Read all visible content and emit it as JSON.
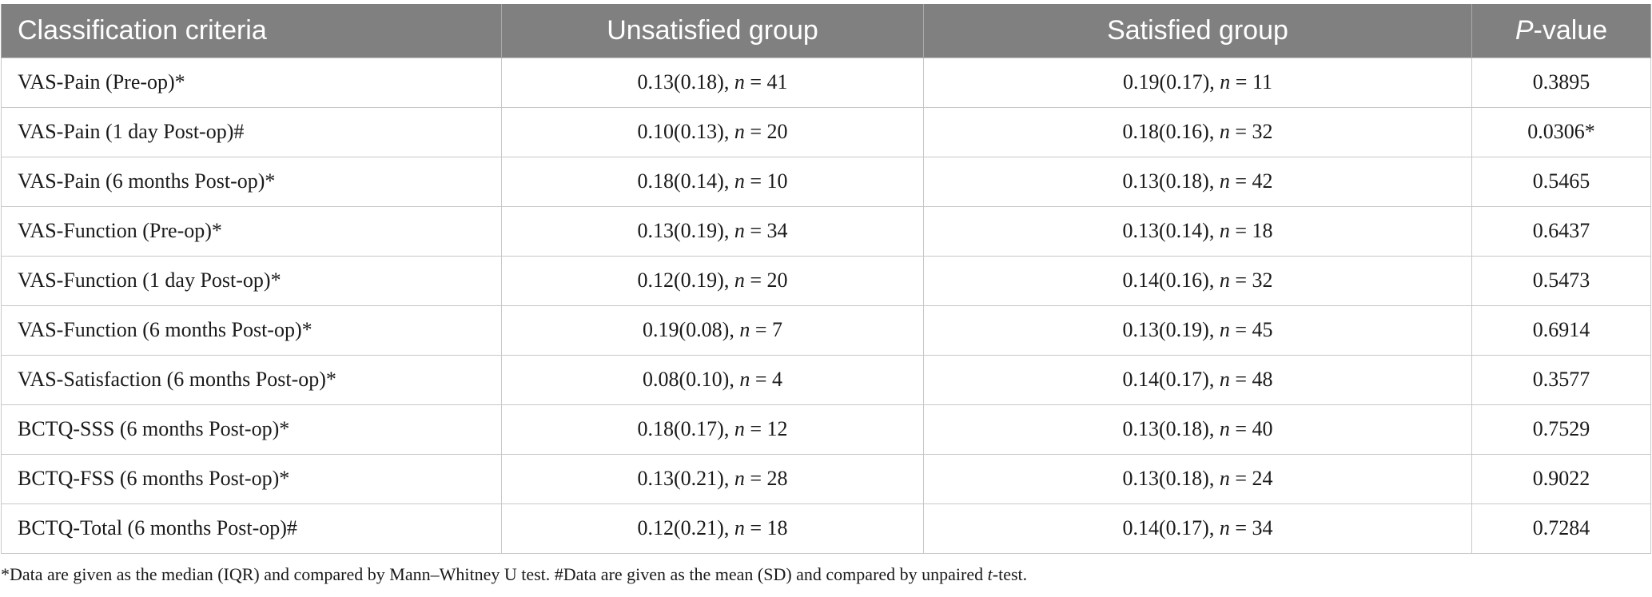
{
  "table": {
    "headers": {
      "criteria": "Classification criteria",
      "unsatisfied": "Unsatisfied group",
      "satisfied": "Satisfied group",
      "p_italic": "P",
      "p_rest": "-value"
    },
    "rows": [
      {
        "criteria": "VAS-Pain (Pre-op)*",
        "unsat_val": "0.13(0.18), ",
        "unsat_n": "41",
        "sat_val": "0.19(0.17), ",
        "sat_n": "11",
        "p": "0.3895"
      },
      {
        "criteria": "VAS-Pain (1 day Post-op)#",
        "unsat_val": "0.10(0.13), ",
        "unsat_n": "20",
        "sat_val": "0.18(0.16), ",
        "sat_n": "32",
        "p": "0.0306*"
      },
      {
        "criteria": "VAS-Pain (6 months Post-op)*",
        "unsat_val": "0.18(0.14), ",
        "unsat_n": "10",
        "sat_val": "0.13(0.18), ",
        "sat_n": "42",
        "p": "0.5465"
      },
      {
        "criteria": "VAS-Function (Pre-op)*",
        "unsat_val": "0.13(0.19), ",
        "unsat_n": "34",
        "sat_val": "0.13(0.14), ",
        "sat_n": "18",
        "p": "0.6437"
      },
      {
        "criteria": "VAS-Function (1 day Post-op)*",
        "unsat_val": "0.12(0.19), ",
        "unsat_n": "20",
        "sat_val": "0.14(0.16), ",
        "sat_n": "32",
        "p": "0.5473"
      },
      {
        "criteria": "VAS-Function (6 months Post-op)*",
        "unsat_val": "0.19(0.08), ",
        "unsat_n": "7",
        "sat_val": "0.13(0.19), ",
        "sat_n": "45",
        "p": "0.6914"
      },
      {
        "criteria": "VAS-Satisfaction (6 months Post-op)*",
        "unsat_val": "0.08(0.10), ",
        "unsat_n": "4",
        "sat_val": "0.14(0.17), ",
        "sat_n": "48",
        "p": "0.3577"
      },
      {
        "criteria": "BCTQ-SSS (6 months Post-op)*",
        "unsat_val": "0.18(0.17), ",
        "unsat_n": "12",
        "sat_val": "0.13(0.18), ",
        "sat_n": "40",
        "p": "0.7529"
      },
      {
        "criteria": "BCTQ-FSS (6 months Post-op)*",
        "unsat_val": "0.13(0.21), ",
        "unsat_n": "28",
        "sat_val": "0.13(0.18), ",
        "sat_n": "24",
        "p": "0.9022"
      },
      {
        "criteria": "BCTQ-Total (6 months Post-op)#",
        "unsat_val": "0.12(0.21), ",
        "unsat_n": "18",
        "sat_val": "0.14(0.17), ",
        "sat_n": "34",
        "p": "0.7284"
      }
    ]
  },
  "footnote": {
    "part1": "*Data are given as the median (IQR) and compared by Mann–Whitney U test. #Data are given as the mean (SD) and compared by unpaired ",
    "t_italic": "t",
    "part2": "-test."
  }
}
